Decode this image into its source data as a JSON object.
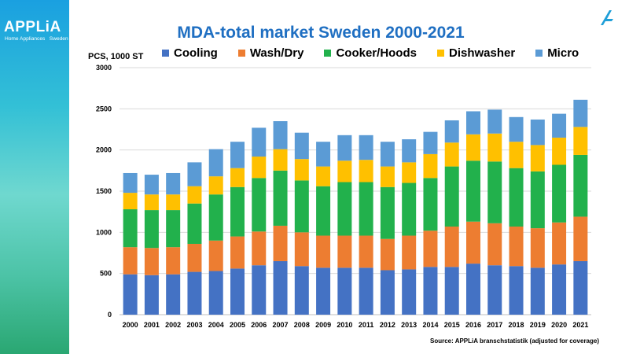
{
  "brand": {
    "name": "APPLiA",
    "sub": "Home Appliances   Sweden"
  },
  "unit_label": "PCS, 1000 ST",
  "source": "Source: APPLiA branschstatistik (adjusted for coverage)",
  "colors": {
    "Cooling": "#4472c4",
    "Wash/Dry": "#ed7d31",
    "Cooker/Hoods": "#22b14c",
    "Dishwasher": "#ffc000",
    "Micro": "#5b9bd5"
  },
  "chart_data": {
    "type": "bar",
    "stacked": true,
    "title": "MDA-total market Sweden 2000-2021",
    "ylabel": "PCS, 1000 ST",
    "ylim": [
      0,
      3000
    ],
    "yticks": [
      0,
      500,
      1000,
      1500,
      2000,
      2500,
      3000
    ],
    "grid": true,
    "legend_position": "top",
    "categories": [
      "2000",
      "2001",
      "2002",
      "2003",
      "2004",
      "2005",
      "2006",
      "2007",
      "2008",
      "2009",
      "2010",
      "2011",
      "2012",
      "2013",
      "2014",
      "2015",
      "2016",
      "2017",
      "2018",
      "2019",
      "2020",
      "2021"
    ],
    "series": [
      {
        "name": "Cooling",
        "values": [
          490,
          480,
          490,
          520,
          530,
          560,
          600,
          650,
          590,
          570,
          570,
          570,
          540,
          550,
          580,
          580,
          620,
          600,
          590,
          570,
          610,
          650
        ]
      },
      {
        "name": "Wash/Dry",
        "values": [
          330,
          330,
          330,
          340,
          370,
          390,
          410,
          430,
          410,
          390,
          390,
          390,
          380,
          410,
          440,
          490,
          510,
          510,
          480,
          480,
          510,
          540
        ]
      },
      {
        "name": "Cooker/Hoods",
        "values": [
          460,
          460,
          450,
          490,
          560,
          600,
          650,
          670,
          630,
          600,
          650,
          650,
          630,
          640,
          640,
          730,
          740,
          750,
          710,
          690,
          700,
          750
        ]
      },
      {
        "name": "Dishwasher",
        "values": [
          200,
          190,
          190,
          210,
          220,
          230,
          260,
          260,
          260,
          240,
          260,
          270,
          250,
          250,
          290,
          290,
          320,
          340,
          320,
          320,
          330,
          340
        ]
      },
      {
        "name": "Micro",
        "values": [
          240,
          240,
          260,
          290,
          330,
          320,
          350,
          340,
          320,
          300,
          310,
          300,
          300,
          280,
          270,
          270,
          280,
          290,
          300,
          310,
          290,
          330
        ]
      }
    ]
  }
}
